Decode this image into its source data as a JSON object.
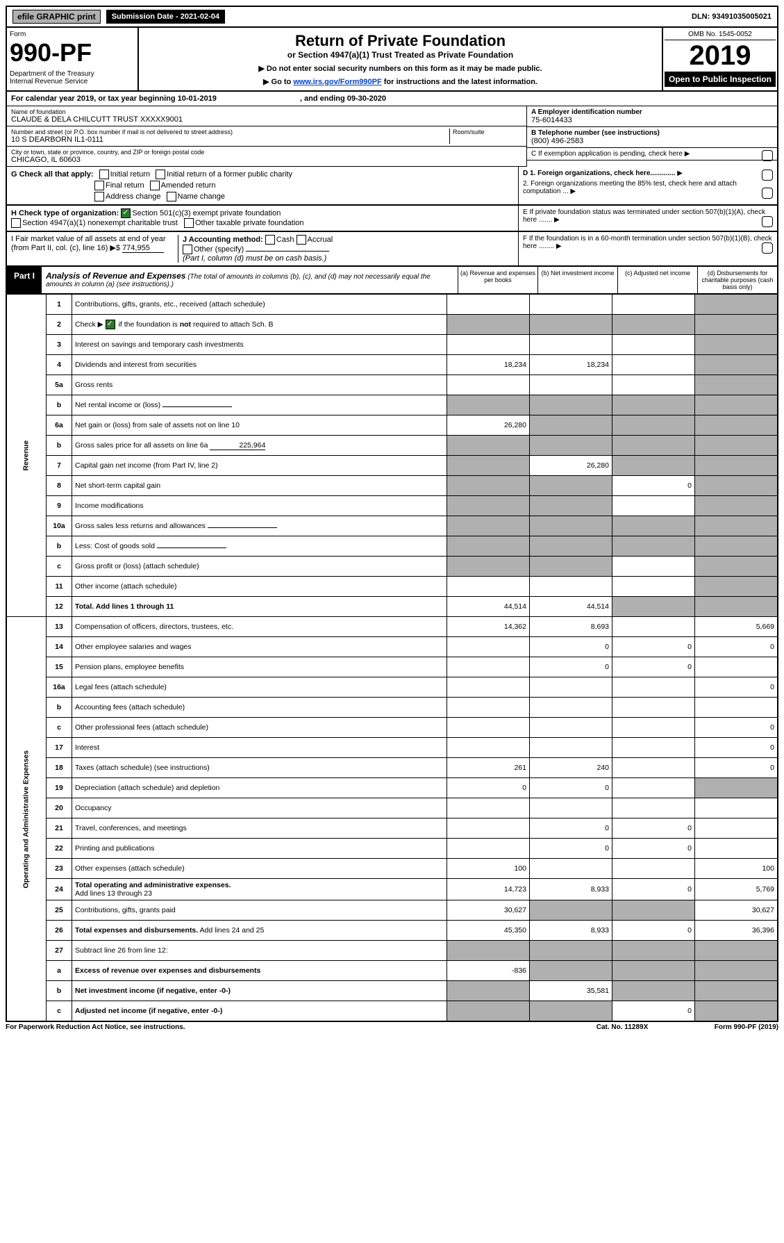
{
  "topbar": {
    "efile": "efile GRAPHIC print",
    "subdate": "Submission Date - 2021-02-04",
    "dln": "DLN: 93491035005021"
  },
  "header": {
    "form_label": "Form",
    "form_number": "990-PF",
    "dept": "Department of the Treasury\nInternal Revenue Service",
    "title": "Return of Private Foundation",
    "subtitle": "or Section 4947(a)(1) Trust Treated as Private Foundation",
    "instr1": "▶ Do not enter social security numbers on this form as it may be made public.",
    "instr2": "▶ Go to www.irs.gov/Form990PF for instructions and the latest information.",
    "omb": "OMB No. 1545-0052",
    "year": "2019",
    "open": "Open to Public Inspection"
  },
  "calendar": {
    "text1": "For calendar year 2019, or tax year beginning 10-01-2019",
    "text2": ", and ending 09-30-2020"
  },
  "info": {
    "name_label": "Name of foundation",
    "name_value": "CLAUDE & DELA CHILCUTT TRUST XXXXX9001",
    "addr_label": "Number and street (or P.O. box number if mail is not delivered to street address)",
    "addr_value": "10 S DEARBORN IL1-0111",
    "room_label": "Room/suite",
    "city_label": "City or town, state or province, country, and ZIP or foreign postal code",
    "city_value": "CHICAGO, IL  60603",
    "a_label": "A Employer identification number",
    "a_value": "75-6014433",
    "b_label": "B Telephone number (see instructions)",
    "b_value": "(800) 496-2583",
    "c_label": "C  If exemption application is pending, check here",
    "d1_label": "D 1. Foreign organizations, check here.............",
    "d2_label": "2. Foreign organizations meeting the 85% test, check here and attach computation ...",
    "e_label": "E  If private foundation status was terminated under section 507(b)(1)(A), check here .......",
    "f_label": "F  If the foundation is in a 60-month termination under section 507(b)(1)(B), check here ........"
  },
  "g": {
    "label": "G Check all that apply:",
    "opts": [
      "Initial return",
      "Initial return of a former public charity",
      "Final return",
      "Amended return",
      "Address change",
      "Name change"
    ]
  },
  "h": {
    "label": "H Check type of organization:",
    "opt1": "Section 501(c)(3) exempt private foundation",
    "opt2": "Section 4947(a)(1) nonexempt charitable trust",
    "opt3": "Other taxable private foundation"
  },
  "i": {
    "label": "I Fair market value of all assets at end of year (from Part II, col. (c), line 16) ▶$",
    "value": "774,955"
  },
  "j": {
    "label": "J Accounting method:",
    "cash": "Cash",
    "accrual": "Accrual",
    "other": "Other (specify)",
    "note": "(Part I, column (d) must be on cash basis.)"
  },
  "part1": {
    "label": "Part I",
    "title": "Analysis of Revenue and Expenses",
    "note": "(The total of amounts in columns (b), (c), and (d) may not necessarily equal the amounts in column (a) (see instructions).)",
    "col_a": "(a)   Revenue and expenses per books",
    "col_b": "(b)  Net investment income",
    "col_c": "(c)  Adjusted net income",
    "col_d": "(d)  Disbursements for charitable purposes (cash basis only)"
  },
  "sides": {
    "revenue": "Revenue",
    "expenses": "Operating and Administrative Expenses"
  },
  "lines": {
    "1": {
      "desc": "Contributions, gifts, grants, etc., received (attach schedule)"
    },
    "2": {
      "desc": "Check ▶     if the foundation is not required to attach Sch. B"
    },
    "3": {
      "desc": "Interest on savings and temporary cash investments"
    },
    "4": {
      "desc": "Dividends and interest from securities",
      "a": "18,234",
      "b": "18,234"
    },
    "5a": {
      "desc": "Gross rents"
    },
    "5b": {
      "desc": "Net rental income or (loss)"
    },
    "6a": {
      "desc": "Net gain or (loss) from sale of assets not on line 10",
      "a": "26,280"
    },
    "6b": {
      "desc": "Gross sales price for all assets on line 6a",
      "inline": "225,964"
    },
    "7": {
      "desc": "Capital gain net income (from Part IV, line 2)",
      "b": "26,280"
    },
    "8": {
      "desc": "Net short-term capital gain",
      "c": "0"
    },
    "9": {
      "desc": "Income modifications"
    },
    "10a": {
      "desc": "Gross sales less returns and allowances"
    },
    "10b": {
      "desc": "Less: Cost of goods sold"
    },
    "10c": {
      "desc": "Gross profit or (loss) (attach schedule)"
    },
    "11": {
      "desc": "Other income (attach schedule)"
    },
    "12": {
      "desc": "Total. Add lines 1 through 11",
      "a": "44,514",
      "b": "44,514"
    },
    "13": {
      "desc": "Compensation of officers, directors, trustees, etc.",
      "a": "14,362",
      "b": "8,693",
      "d": "5,669"
    },
    "14": {
      "desc": "Other employee salaries and wages",
      "b": "0",
      "c": "0",
      "d": "0"
    },
    "15": {
      "desc": "Pension plans, employee benefits",
      "b": "0",
      "c": "0"
    },
    "16a": {
      "desc": "Legal fees (attach schedule)",
      "d": "0"
    },
    "16b": {
      "desc": "Accounting fees (attach schedule)"
    },
    "16c": {
      "desc": "Other professional fees (attach schedule)",
      "d": "0"
    },
    "17": {
      "desc": "Interest",
      "d": "0"
    },
    "18": {
      "desc": "Taxes (attach schedule) (see instructions)",
      "a": "261",
      "b": "240",
      "d": "0"
    },
    "19": {
      "desc": "Depreciation (attach schedule) and depletion",
      "a": "0",
      "b": "0"
    },
    "20": {
      "desc": "Occupancy"
    },
    "21": {
      "desc": "Travel, conferences, and meetings",
      "b": "0",
      "c": "0"
    },
    "22": {
      "desc": "Printing and publications",
      "b": "0",
      "c": "0"
    },
    "23": {
      "desc": "Other expenses (attach schedule)",
      "a": "100",
      "d": "100"
    },
    "24": {
      "desc": "Total operating and administrative expenses. Add lines 13 through 23",
      "a": "14,723",
      "b": "8,933",
      "c": "0",
      "d": "5,769"
    },
    "25": {
      "desc": "Contributions, gifts, grants paid",
      "a": "30,627",
      "d": "30,627"
    },
    "26": {
      "desc": "Total expenses and disbursements. Add lines 24 and 25",
      "a": "45,350",
      "b": "8,933",
      "c": "0",
      "d": "36,396"
    },
    "27": {
      "desc": "Subtract line 26 from line 12:"
    },
    "27a": {
      "desc": "Excess of revenue over expenses and disbursements",
      "a": "-836"
    },
    "27b": {
      "desc": "Net investment income (if negative, enter -0-)",
      "b": "35,581"
    },
    "27c": {
      "desc": "Adjusted net income (if negative, enter -0-)",
      "c": "0"
    }
  },
  "footer": {
    "left": "For Paperwork Reduction Act Notice, see instructions.",
    "mid": "Cat. No. 11289X",
    "right": "Form 990-PF (2019)"
  }
}
